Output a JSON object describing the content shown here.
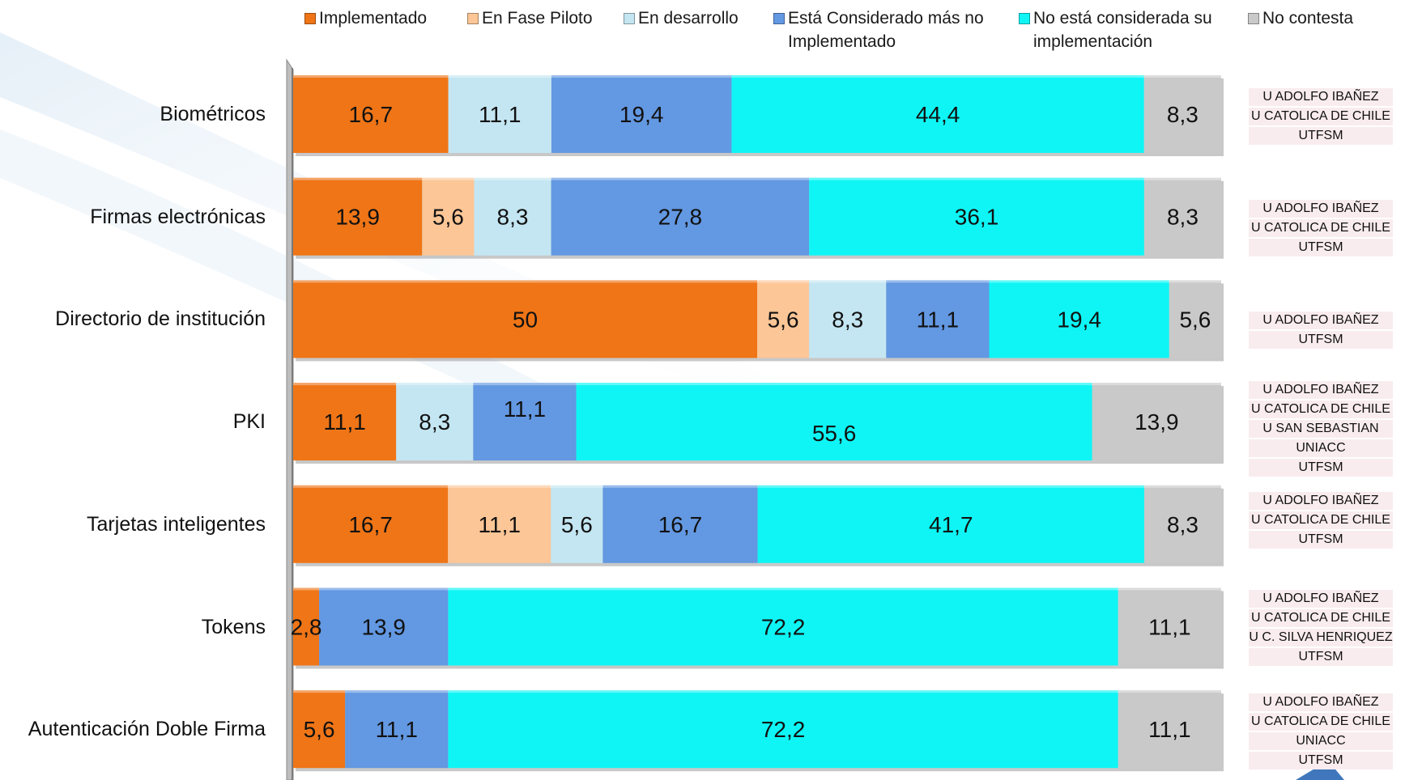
{
  "chart_data": {
    "type": "bar",
    "orientation": "horizontal",
    "stacked": true,
    "title": "",
    "xlabel": "",
    "ylabel": "",
    "xlim": [
      0,
      100
    ],
    "grid": false,
    "legend_position": "top",
    "categories": [
      "Biométricos",
      "Firmas electrónicas",
      "Directorio de institución",
      "PKI",
      "Tarjetas inteligentes",
      "Tokens",
      "Autenticación Doble Firma"
    ],
    "series": [
      {
        "name": "Implementado",
        "color": "#ef7517",
        "values": [
          16.7,
          13.9,
          50,
          11.1,
          16.7,
          2.8,
          5.6
        ],
        "labels": [
          "16,7",
          "13,9",
          "50",
          "11,1",
          "16,7",
          "2,8",
          "5,6"
        ]
      },
      {
        "name": "En Fase Piloto",
        "color": "#fcc697",
        "values": [
          0,
          5.6,
          5.6,
          0,
          11.1,
          0,
          0
        ],
        "labels": [
          "",
          "5,6",
          "5,6",
          "",
          "11,1",
          "",
          ""
        ]
      },
      {
        "name": "En desarrollo",
        "color": "#c4e6f2",
        "values": [
          11.1,
          8.3,
          8.3,
          8.3,
          5.6,
          0,
          0
        ],
        "labels": [
          "11,1",
          "8,3",
          "8,3",
          "8,3",
          "5,6",
          "",
          ""
        ]
      },
      {
        "name": "Está Considerado más no Implementado",
        "color": "#6398e2",
        "values": [
          19.4,
          27.8,
          11.1,
          11.1,
          16.7,
          13.9,
          11.1
        ],
        "labels": [
          "19,4",
          "27,8",
          "11,1",
          "11,1",
          "16,7",
          "13,9",
          "11,1"
        ]
      },
      {
        "name": "No está considerada su implementación",
        "color": "#0ff5f5",
        "values": [
          44.4,
          36.1,
          19.4,
          55.6,
          41.7,
          72.2,
          72.2
        ],
        "labels": [
          "44,4",
          "36,1",
          "19,4",
          "55,6",
          "41,7",
          "72,2",
          "72,2"
        ]
      },
      {
        "name": "No contesta",
        "color": "#c9c9c9",
        "values": [
          8.3,
          8.3,
          5.6,
          13.9,
          8.3,
          11.1,
          11.1
        ],
        "labels": [
          "8,3",
          "8,3",
          "5,6",
          "13,9",
          "8,3",
          "11,1",
          "11,1"
        ]
      }
    ],
    "legend": {
      "line1": [
        "Implementado",
        "En Fase Piloto",
        "En desarrollo",
        "Está Considerado más no",
        "No está considerada su",
        "No contesta"
      ],
      "line2": [
        "",
        "",
        "",
        "Implementado",
        "implementación",
        ""
      ]
    }
  },
  "institutions": [
    [
      "U ADOLFO IBAÑEZ",
      "U CATOLICA DE CHILE",
      "UTFSM"
    ],
    [
      "U ADOLFO IBAÑEZ",
      "U CATOLICA DE CHILE",
      "UTFSM"
    ],
    [
      "U ADOLFO IBAÑEZ",
      "UTFSM"
    ],
    [
      "U ADOLFO IBAÑEZ",
      "U CATOLICA DE CHILE",
      "U SAN SEBASTIAN",
      "UNIACC",
      "UTFSM"
    ],
    [
      "U ADOLFO IBAÑEZ",
      "U CATOLICA DE CHILE",
      "UTFSM"
    ],
    [
      "U ADOLFO IBAÑEZ",
      "U CATOLICA DE CHILE",
      "U C. SILVA HENRIQUEZ",
      "UTFSM"
    ],
    [
      "U ADOLFO IBAÑEZ",
      "U CATOLICA DE CHILE",
      "UNIACC",
      "UTFSM"
    ]
  ]
}
